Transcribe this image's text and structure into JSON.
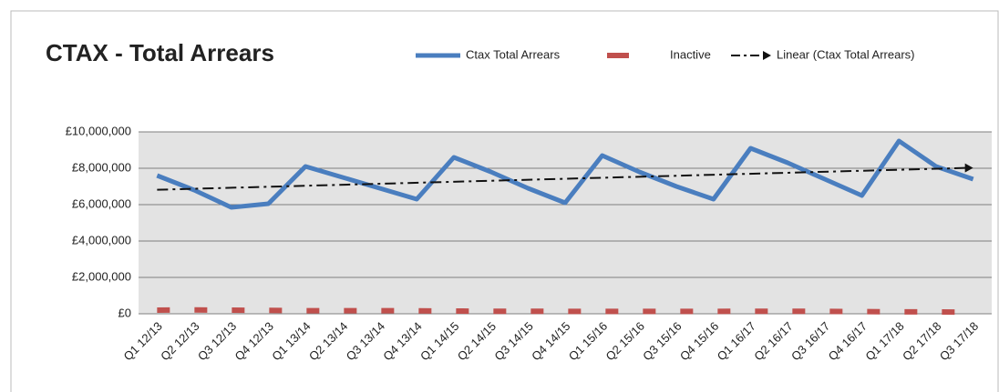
{
  "chart_data": {
    "type": "line",
    "title": "CTAX - Total Arrears",
    "categories": [
      "Q1 12/13",
      "Q2 12/13",
      "Q3 12/13",
      "Q4 12/13",
      "Q1 13/14",
      "Q2 13/14",
      "Q3 13/14",
      "Q4 13/14",
      "Q1 14/15",
      "Q2 14/15",
      "Q3 14/15",
      "Q4 14/15",
      "Q1 15/16",
      "Q2 15/16",
      "Q3 15/16",
      "Q4 15/16",
      "Q1 16/17",
      "Q2 16/17",
      "Q3 16/17",
      "Q4 16/17",
      "Q1 17/18",
      "Q2 17/18",
      "Q3 17/18"
    ],
    "series": [
      {
        "name": "Ctax Total Arrears",
        "color": "#4a7ebf",
        "values": [
          7600000,
          6800000,
          5850000,
          6050000,
          8100000,
          7500000,
          6900000,
          6300000,
          8600000,
          7800000,
          6900000,
          6100000,
          8700000,
          7800000,
          7000000,
          6300000,
          9100000,
          8300000,
          7400000,
          6500000,
          9500000,
          8100000,
          7400000
        ]
      },
      {
        "name": "Inactive",
        "color": "#c0504d",
        "dashed": true,
        "values": [
          200000,
          210000,
          200000,
          190000,
          170000,
          170000,
          170000,
          160000,
          150000,
          140000,
          140000,
          130000,
          130000,
          130000,
          130000,
          130000,
          140000,
          140000,
          130000,
          120000,
          110000,
          100000,
          90000
        ]
      }
    ],
    "trendline": {
      "name": "Linear (Ctax Total Arrears)",
      "type": "linear",
      "color": "#111111"
    },
    "ylim": [
      0,
      10000000
    ],
    "yticks": [
      {
        "value": 0,
        "label": "£0"
      },
      {
        "value": 2000000,
        "label": "£2,000,000"
      },
      {
        "value": 4000000,
        "label": "£4,000,000"
      },
      {
        "value": 6000000,
        "label": "£6,000,000"
      },
      {
        "value": 8000000,
        "label": "£8,000,000"
      },
      {
        "value": 10000000,
        "label": "£10,000,000"
      }
    ],
    "grid": true
  }
}
